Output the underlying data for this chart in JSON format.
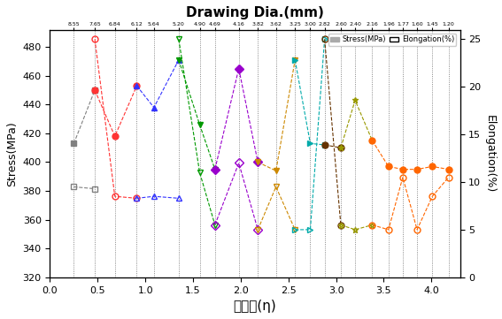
{
  "title": "Drawing Dia.(mm)",
  "xlabel": "가공률(η)",
  "ylabel_left": "Stress(MPa)",
  "ylabel_right": "Elongation(%)",
  "top_labels": [
    "8.55",
    "7.65",
    "6.84",
    "6.12",
    "5.64",
    "5.20",
    "4.90",
    "4.69",
    "4.16",
    "3.82",
    "3.62",
    "3.25",
    "3.00",
    "2.82",
    "2.60",
    "2.40",
    "2.16",
    "1.96",
    "1.77",
    "1.60",
    "1.45",
    "1.20"
  ],
  "top_tick_x": [
    0.25,
    0.47,
    0.68,
    0.91,
    1.09,
    1.35,
    1.57,
    1.73,
    1.98,
    2.18,
    2.37,
    2.57,
    2.73,
    2.88,
    3.05,
    3.2,
    3.38,
    3.55,
    3.7,
    3.85,
    4.01,
    4.18
  ],
  "xlim": [
    0.0,
    4.3
  ],
  "ylim_left": [
    320,
    492
  ],
  "ylim_right": [
    0,
    26
  ],
  "yticks_left": [
    320,
    340,
    360,
    380,
    400,
    420,
    440,
    460,
    480
  ],
  "yticks_right": [
    0,
    5,
    10,
    15,
    20,
    25
  ],
  "xticks": [
    0,
    0.5,
    1.0,
    1.5,
    2.0,
    2.5,
    3.0,
    3.5,
    4.0
  ],
  "vlines_x": [
    0.25,
    0.47,
    0.68,
    0.91,
    1.09,
    1.35,
    1.57,
    1.73,
    1.98,
    2.18,
    2.37,
    2.57,
    2.73,
    2.88,
    3.05,
    3.2,
    3.38,
    3.55,
    3.7,
    3.85,
    4.01,
    4.18
  ],
  "stress_series": [
    {
      "x": [
        0.25,
        0.47
      ],
      "y": [
        413,
        450
      ],
      "color": "#808080",
      "marker": "s"
    },
    {
      "x": [
        0.47,
        0.68,
        0.91
      ],
      "y": [
        450,
        418,
        453
      ],
      "color": "#ff3333",
      "marker": "o"
    },
    {
      "x": [
        0.91,
        1.09,
        1.35
      ],
      "y": [
        453,
        438,
        471
      ],
      "color": "#3333ff",
      "marker": "^"
    },
    {
      "x": [
        1.35,
        1.57,
        1.73
      ],
      "y": [
        471,
        426,
        395
      ],
      "color": "#009900",
      "marker": "v"
    },
    {
      "x": [
        1.73,
        1.98,
        2.18
      ],
      "y": [
        395,
        465,
        400
      ],
      "color": "#9900cc",
      "marker": "D"
    },
    {
      "x": [
        2.18,
        2.37,
        2.57
      ],
      "y": [
        400,
        394,
        471
      ],
      "color": "#cc8800",
      "marker": "v"
    },
    {
      "x": [
        2.57,
        2.73,
        2.88
      ],
      "y": [
        471,
        413,
        412
      ],
      "color": "#00aaaa",
      "marker": ">"
    },
    {
      "x": [
        2.88,
        3.05
      ],
      "y": [
        412,
        410
      ],
      "color": "#663300",
      "marker": "o"
    },
    {
      "x": [
        3.05,
        3.2,
        3.38
      ],
      "y": [
        410,
        443,
        415
      ],
      "color": "#999900",
      "marker": "*"
    },
    {
      "x": [
        3.38,
        3.55,
        3.7,
        3.85,
        4.01,
        4.18
      ],
      "y": [
        415,
        397,
        395,
        395,
        397,
        395
      ],
      "color": "#ff6600",
      "marker": "o"
    }
  ],
  "elong_series": [
    {
      "x": [
        0.25,
        0.47
      ],
      "y": [
        9.5,
        9.3
      ],
      "color": "#808080",
      "marker": "s"
    },
    {
      "x": [
        0.47,
        0.68,
        0.91
      ],
      "y": [
        25.0,
        8.5,
        8.3
      ],
      "color": "#ff3333",
      "marker": "o"
    },
    {
      "x": [
        0.91,
        1.09,
        1.35
      ],
      "y": [
        8.3,
        8.5,
        8.3
      ],
      "color": "#3333ff",
      "marker": "^"
    },
    {
      "x": [
        1.35,
        1.57,
        1.73
      ],
      "y": [
        25.0,
        11.0,
        5.5
      ],
      "color": "#009900",
      "marker": "v"
    },
    {
      "x": [
        1.73,
        1.98,
        2.18
      ],
      "y": [
        5.5,
        12.0,
        5.0
      ],
      "color": "#9900cc",
      "marker": "D"
    },
    {
      "x": [
        2.18,
        2.37,
        2.57
      ],
      "y": [
        5.0,
        9.5,
        5.0
      ],
      "color": "#cc8800",
      "marker": "v"
    },
    {
      "x": [
        2.57,
        2.73,
        2.88
      ],
      "y": [
        5.0,
        5.0,
        25.0
      ],
      "color": "#00aaaa",
      "marker": ">"
    },
    {
      "x": [
        2.88,
        3.05
      ],
      "y": [
        25.0,
        5.5
      ],
      "color": "#663300",
      "marker": "o"
    },
    {
      "x": [
        3.05,
        3.2,
        3.38
      ],
      "y": [
        5.5,
        5.0,
        5.5
      ],
      "color": "#999900",
      "marker": "*"
    },
    {
      "x": [
        3.38,
        3.55,
        3.7,
        3.85,
        4.01,
        4.18
      ],
      "y": [
        5.5,
        5.0,
        10.5,
        5.0,
        8.5,
        10.5
      ],
      "color": "#ff6600",
      "marker": "o"
    }
  ],
  "background_color": "#ffffff"
}
